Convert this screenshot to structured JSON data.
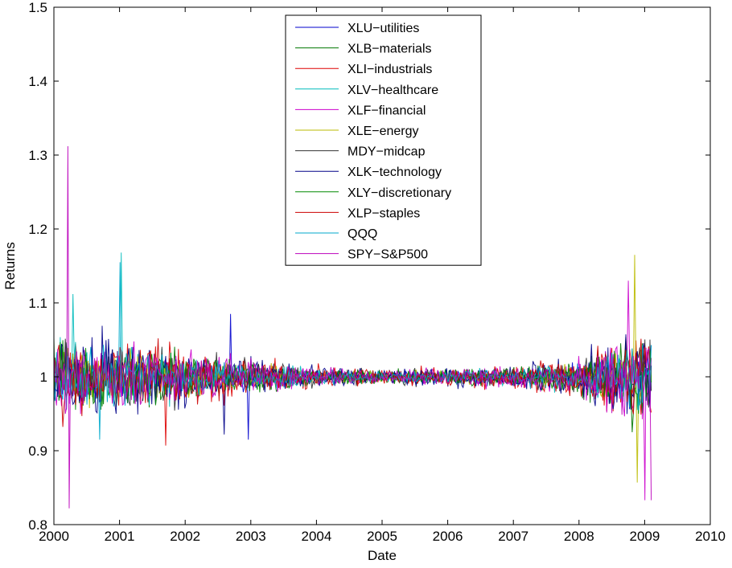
{
  "chart_data": {
    "type": "line",
    "title": "",
    "xlabel": "Date",
    "ylabel": "Returns",
    "xlim": [
      2000,
      2010
    ],
    "ylim": [
      0.8,
      1.5
    ],
    "x_ticks": [
      "2000",
      "2001",
      "2002",
      "2003",
      "2004",
      "2005",
      "2006",
      "2007",
      "2008",
      "2009",
      "2010"
    ],
    "y_ticks": [
      "0.8",
      "0.9",
      "1",
      "1.1",
      "1.2",
      "1.3",
      "1.4",
      "1.5"
    ],
    "grid": false,
    "legend_position": "top-center",
    "data_range_years": [
      2000.0,
      2009.1
    ],
    "volatility_profile": [
      {
        "year": 2000.0,
        "amplitude": 0.045
      },
      {
        "year": 2001.0,
        "amplitude": 0.04
      },
      {
        "year": 2002.0,
        "amplitude": 0.03
      },
      {
        "year": 2003.0,
        "amplitude": 0.02
      },
      {
        "year": 2004.0,
        "amplitude": 0.011
      },
      {
        "year": 2005.0,
        "amplitude": 0.009
      },
      {
        "year": 2006.0,
        "amplitude": 0.01
      },
      {
        "year": 2007.0,
        "amplitude": 0.012
      },
      {
        "year": 2007.5,
        "amplitude": 0.016
      },
      {
        "year": 2008.0,
        "amplitude": 0.022
      },
      {
        "year": 2008.7,
        "amplitude": 0.045
      },
      {
        "year": 2009.1,
        "amplitude": 0.05
      }
    ],
    "series": [
      {
        "name": "XLU−utilities",
        "color": "#0000cc",
        "spikes": [
          {
            "x": 2002.96,
            "y": 0.915
          },
          {
            "x": 2002.7,
            "y": 1.085
          }
        ]
      },
      {
        "name": "XLB−materials",
        "color": "#007700",
        "spikes": [
          {
            "x": 2008.8,
            "y": 0.925
          }
        ]
      },
      {
        "name": "XLI−industrials",
        "color": "#dd0000",
        "spikes": [
          {
            "x": 2001.7,
            "y": 0.907
          }
        ]
      },
      {
        "name": "XLV−healthcare",
        "color": "#00bbbb",
        "spikes": [
          {
            "x": 2001.02,
            "y": 1.168
          },
          {
            "x": 2000.3,
            "y": 1.112
          }
        ]
      },
      {
        "name": "XLF−financial",
        "color": "#cc00cc",
        "spikes": [
          {
            "x": 2008.75,
            "y": 1.13
          },
          {
            "x": 2009.0,
            "y": 0.833
          }
        ]
      },
      {
        "name": "XLE−energy",
        "color": "#bbbb00",
        "spikes": [
          {
            "x": 2008.85,
            "y": 1.165
          },
          {
            "x": 2008.88,
            "y": 0.857
          }
        ]
      },
      {
        "name": "MDY−midcap",
        "color": "#333333",
        "spikes": []
      },
      {
        "name": "XLK−technology",
        "color": "#000088",
        "spikes": [
          {
            "x": 2002.6,
            "y": 0.922
          }
        ]
      },
      {
        "name": "XLY−discretionary",
        "color": "#008800",
        "spikes": [
          {
            "x": 2008.9,
            "y": 0.95
          }
        ]
      },
      {
        "name": "XLP−staples",
        "color": "#cc0000",
        "spikes": []
      },
      {
        "name": "QQQ",
        "color": "#00aacc",
        "spikes": [
          {
            "x": 2001.0,
            "y": 1.155
          },
          {
            "x": 2000.7,
            "y": 0.915
          }
        ]
      },
      {
        "name": "SPY−S&P500",
        "color": "#bb00bb",
        "spikes": [
          {
            "x": 2000.21,
            "y": 1.312
          },
          {
            "x": 2000.24,
            "y": 0.822
          },
          {
            "x": 2009.1,
            "y": 1.145
          },
          {
            "x": 2009.12,
            "y": 0.833
          }
        ]
      }
    ]
  }
}
